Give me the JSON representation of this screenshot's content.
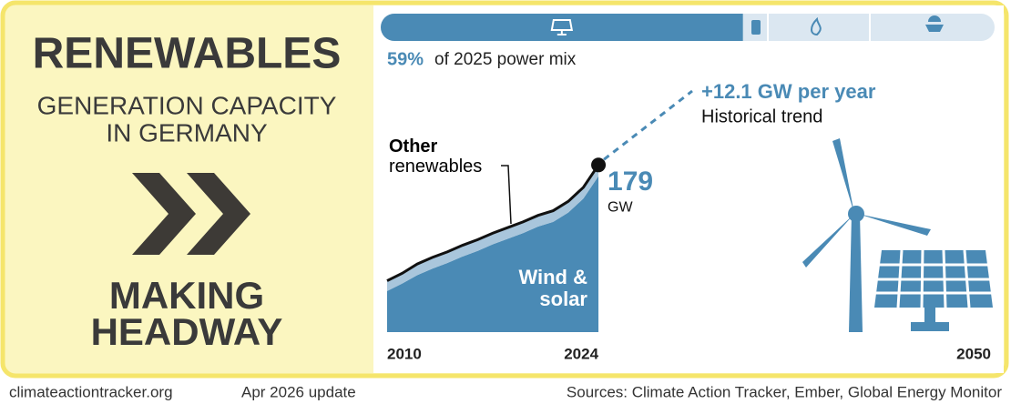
{
  "left": {
    "title": "RENEWABLES",
    "subtitle": [
      "GENERATION CAPACITY",
      "IN GERMANY"
    ],
    "status": [
      "MAKING",
      "HEADWAY"
    ]
  },
  "power_mix": {
    "share": 59,
    "share_label": "59%",
    "text": "of 2025 power mix",
    "color": "#4a8ab5"
  },
  "chart_data": {
    "type": "area",
    "stacked": true,
    "x": [
      2010,
      2011,
      2012,
      2013,
      2014,
      2015,
      2016,
      2017,
      2018,
      2019,
      2020,
      2021,
      2022,
      2023,
      2024
    ],
    "series": [
      {
        "name": "Wind & solar",
        "color": "#4a8ab5",
        "values": [
          44,
          52,
          61,
          68,
          74,
          81,
          87,
          94,
          100,
          106,
          113,
          118,
          128,
          143,
          167
        ]
      },
      {
        "name": "Other renewables",
        "color": "#a9c6dc",
        "values": [
          11,
          11,
          12,
          12,
          12,
          12,
          12,
          12,
          12,
          12,
          12,
          12,
          12,
          12,
          12
        ]
      }
    ],
    "end_value": 179,
    "end_unit": "GW",
    "trend": {
      "label": "+12.1 GW per year",
      "note": "Historical trend"
    },
    "xlim": [
      2010,
      2050
    ],
    "xticks": [
      2010,
      2024,
      2050
    ],
    "ylim": [
      0,
      190
    ]
  },
  "footer": {
    "site": "climateactiontracker.org",
    "update": "Apr 2026 update",
    "sources": "Sources: Climate Action Tracker, Ember, Global Energy Monitor"
  }
}
